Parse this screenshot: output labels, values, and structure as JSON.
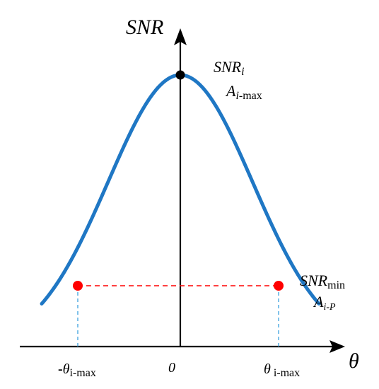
{
  "axes": {
    "y_label": "SNR",
    "x_label": "θ"
  },
  "ticks": {
    "left": {
      "sign": "-",
      "symbol": "θ",
      "subscript": "i-max"
    },
    "center": "0",
    "right": {
      "symbol": "θ",
      "subscript": " i-max"
    }
  },
  "peak": {
    "snr_main": "SNR",
    "snr_sub": "i",
    "amp_main": "A",
    "amp_sub_italic": "i",
    "amp_sub_plain": "-max"
  },
  "threshold": {
    "snr_main": "SNR",
    "snr_sub": "min",
    "amp_main": "A",
    "amp_sub": "i-P"
  },
  "colors": {
    "curve": "#1f77c4",
    "axis": "#000000",
    "peak_point": "#000000",
    "threshold_points": "#ff0000",
    "threshold_line": "#ff0000",
    "drop_lines": "#4aa8e0"
  },
  "curve": {
    "shape": "gaussian",
    "sigma_in_theta_max_units": 0.72,
    "threshold_fraction_of_peak": 0.38,
    "x_extent_in_theta_max_units": 1.38
  }
}
